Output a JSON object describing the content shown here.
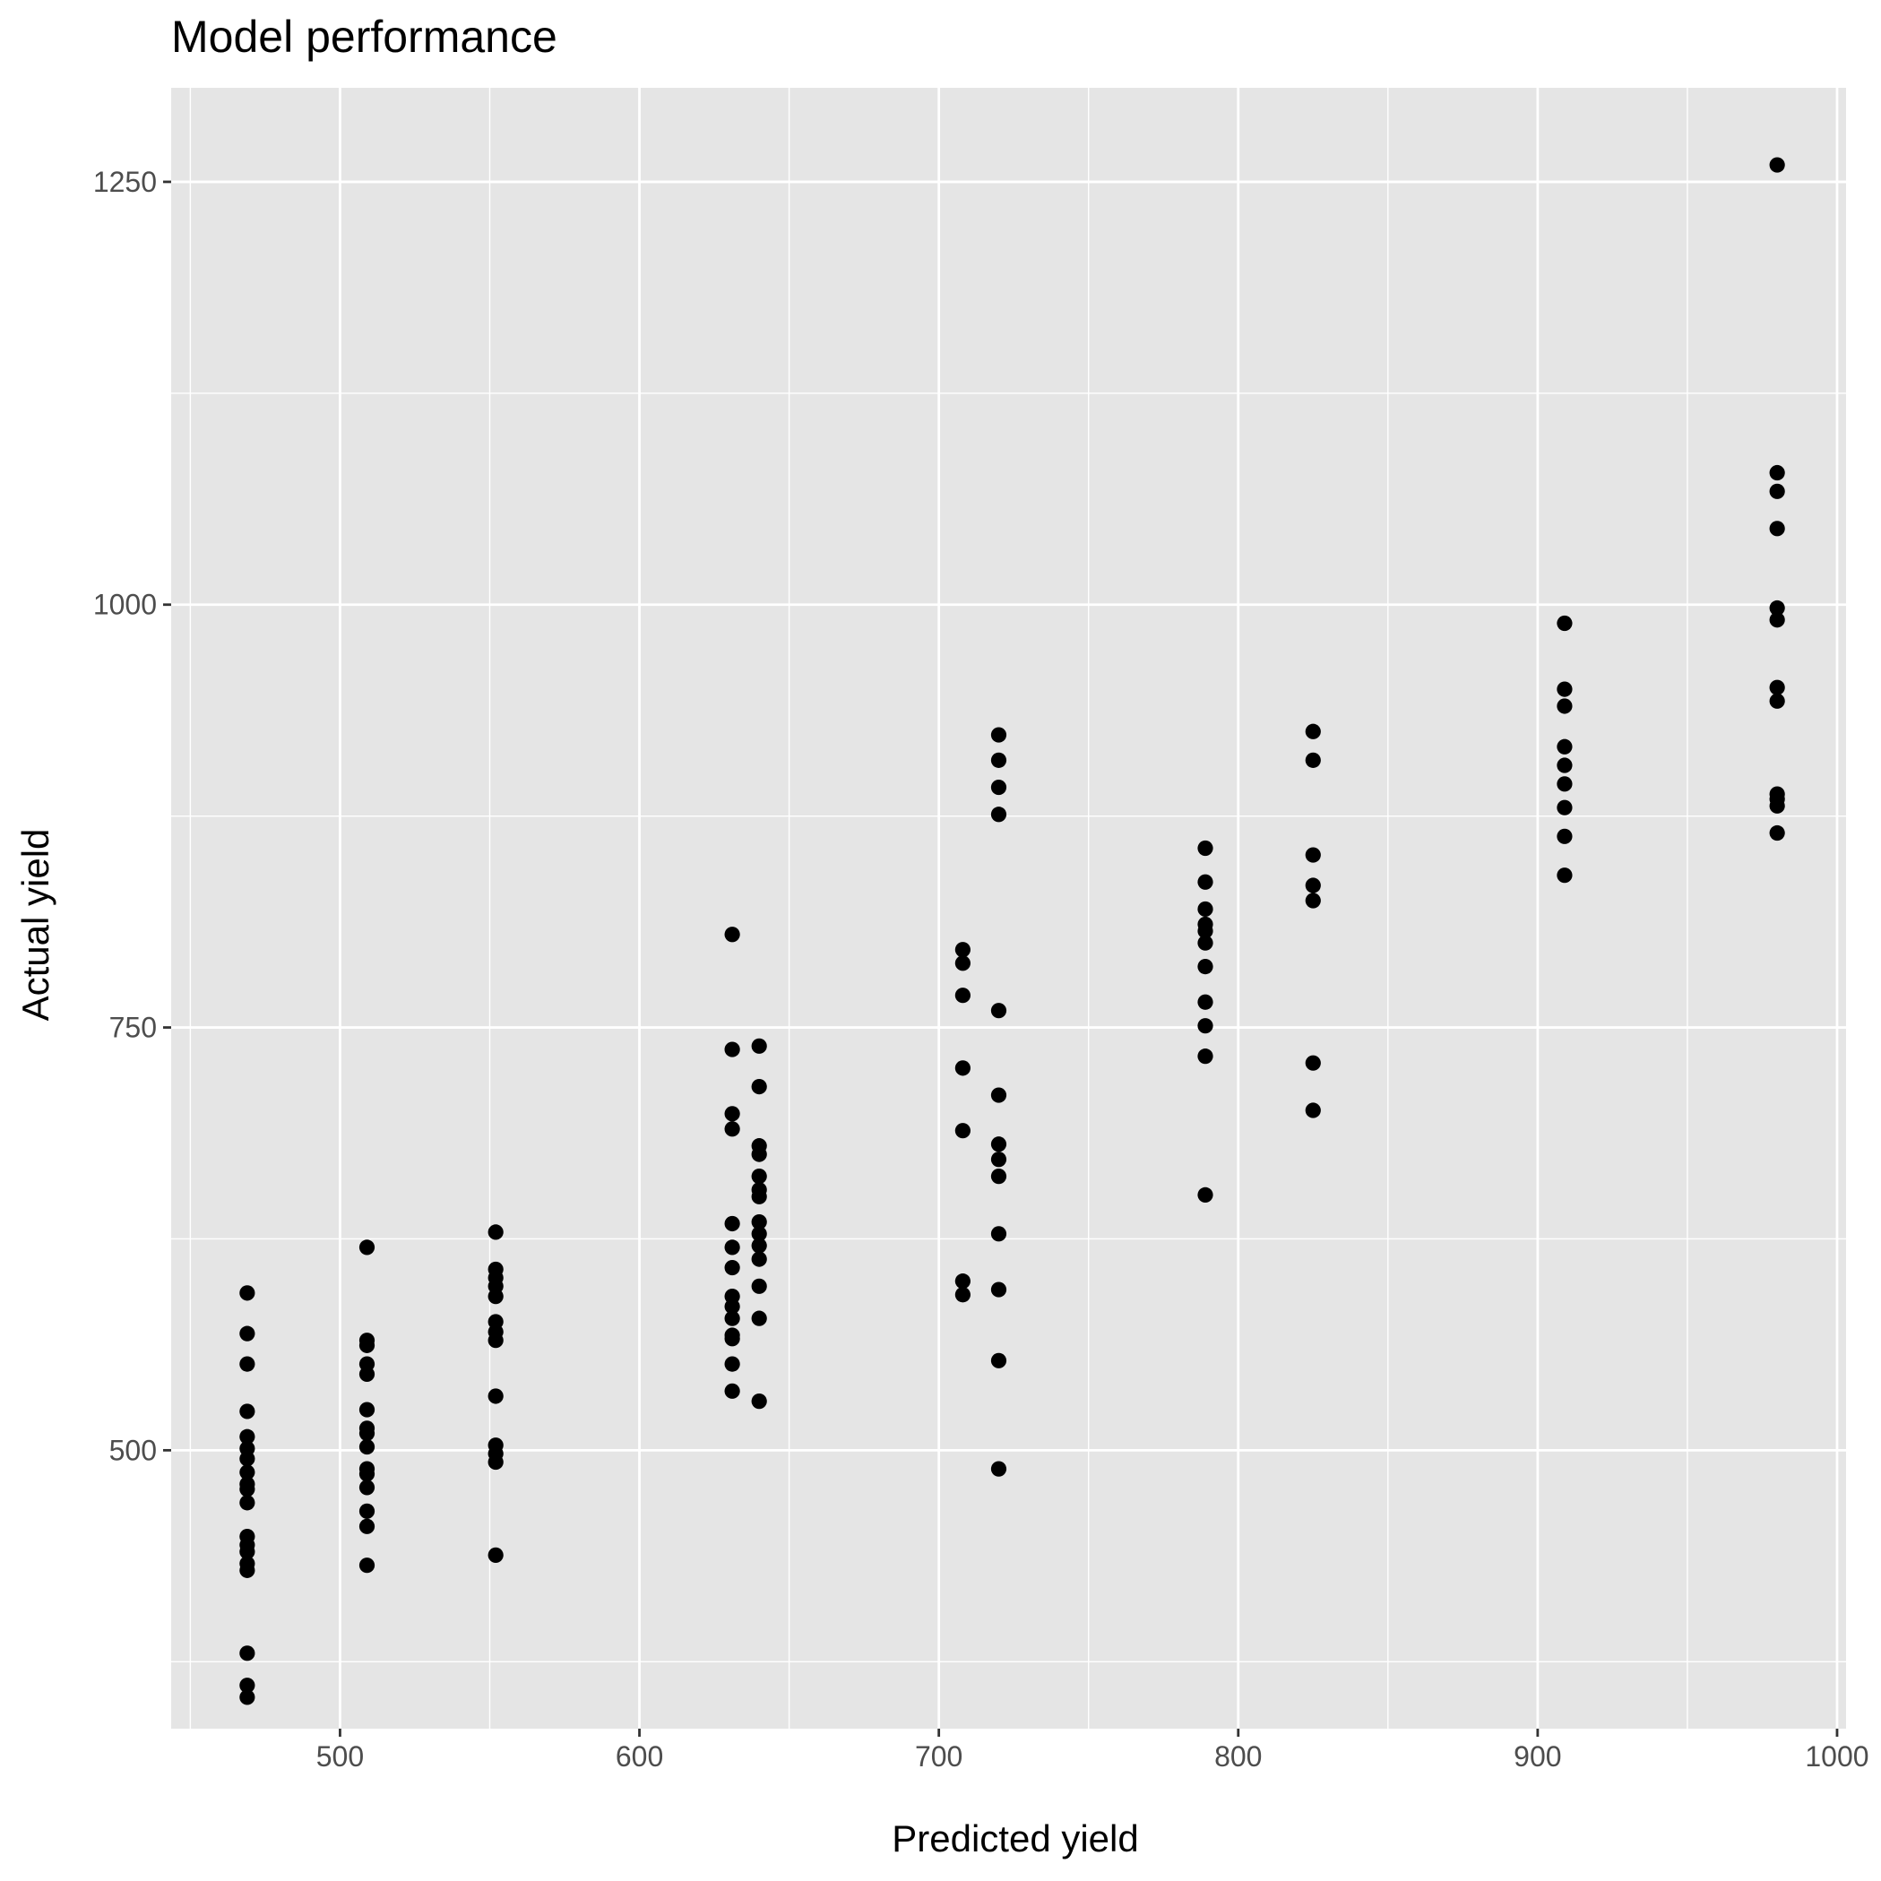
{
  "chart_data": {
    "type": "scatter",
    "title": "Model performance",
    "xlabel": "Predicted yield",
    "ylabel": "Actual yield",
    "xlim": [
      443.6,
      1003.0
    ],
    "ylim": [
      335.4,
      1305.6
    ],
    "x_ticks": [
      500,
      600,
      700,
      800,
      900,
      1000
    ],
    "y_ticks": [
      500,
      750,
      1000,
      1250
    ],
    "x_minor_ticks": [
      450,
      550,
      650,
      750,
      850,
      950
    ],
    "y_minor_ticks": [
      375,
      625,
      875,
      1125
    ],
    "background": "#e5e5e5",
    "grid": true,
    "grid_color": "#ffffff",
    "point_color": "#000000",
    "points": [
      {
        "x": 469,
        "y": 593
      },
      {
        "x": 469,
        "y": 569
      },
      {
        "x": 469,
        "y": 551
      },
      {
        "x": 469,
        "y": 523
      },
      {
        "x": 469,
        "y": 508
      },
      {
        "x": 469,
        "y": 501
      },
      {
        "x": 469,
        "y": 495
      },
      {
        "x": 469,
        "y": 487
      },
      {
        "x": 469,
        "y": 480
      },
      {
        "x": 469,
        "y": 477
      },
      {
        "x": 469,
        "y": 469
      },
      {
        "x": 469,
        "y": 449
      },
      {
        "x": 469,
        "y": 444
      },
      {
        "x": 469,
        "y": 440
      },
      {
        "x": 469,
        "y": 433
      },
      {
        "x": 469,
        "y": 429
      },
      {
        "x": 469,
        "y": 380
      },
      {
        "x": 469,
        "y": 361
      },
      {
        "x": 469,
        "y": 354
      },
      {
        "x": 509,
        "y": 620
      },
      {
        "x": 509,
        "y": 565
      },
      {
        "x": 509,
        "y": 562
      },
      {
        "x": 509,
        "y": 551
      },
      {
        "x": 509,
        "y": 545
      },
      {
        "x": 509,
        "y": 524
      },
      {
        "x": 509,
        "y": 513
      },
      {
        "x": 509,
        "y": 510
      },
      {
        "x": 509,
        "y": 502
      },
      {
        "x": 509,
        "y": 489
      },
      {
        "x": 509,
        "y": 486
      },
      {
        "x": 509,
        "y": 478
      },
      {
        "x": 509,
        "y": 464
      },
      {
        "x": 509,
        "y": 455
      },
      {
        "x": 509,
        "y": 432
      },
      {
        "x": 552,
        "y": 629
      },
      {
        "x": 552,
        "y": 607
      },
      {
        "x": 552,
        "y": 602
      },
      {
        "x": 552,
        "y": 597
      },
      {
        "x": 552,
        "y": 591
      },
      {
        "x": 552,
        "y": 576
      },
      {
        "x": 552,
        "y": 570
      },
      {
        "x": 552,
        "y": 565
      },
      {
        "x": 552,
        "y": 532
      },
      {
        "x": 552,
        "y": 503
      },
      {
        "x": 552,
        "y": 498
      },
      {
        "x": 552,
        "y": 493
      },
      {
        "x": 552,
        "y": 438
      },
      {
        "x": 631,
        "y": 805
      },
      {
        "x": 631,
        "y": 737
      },
      {
        "x": 631,
        "y": 699
      },
      {
        "x": 631,
        "y": 690
      },
      {
        "x": 631,
        "y": 634
      },
      {
        "x": 631,
        "y": 620
      },
      {
        "x": 631,
        "y": 608
      },
      {
        "x": 631,
        "y": 591
      },
      {
        "x": 631,
        "y": 585
      },
      {
        "x": 631,
        "y": 578
      },
      {
        "x": 631,
        "y": 568
      },
      {
        "x": 631,
        "y": 566
      },
      {
        "x": 631,
        "y": 551
      },
      {
        "x": 631,
        "y": 535
      },
      {
        "x": 640,
        "y": 739
      },
      {
        "x": 640,
        "y": 715
      },
      {
        "x": 640,
        "y": 680
      },
      {
        "x": 640,
        "y": 675
      },
      {
        "x": 640,
        "y": 662
      },
      {
        "x": 640,
        "y": 654
      },
      {
        "x": 640,
        "y": 650
      },
      {
        "x": 640,
        "y": 635
      },
      {
        "x": 640,
        "y": 628
      },
      {
        "x": 640,
        "y": 621
      },
      {
        "x": 640,
        "y": 613
      },
      {
        "x": 640,
        "y": 597
      },
      {
        "x": 640,
        "y": 578
      },
      {
        "x": 640,
        "y": 529
      },
      {
        "x": 708,
        "y": 796
      },
      {
        "x": 708,
        "y": 788
      },
      {
        "x": 708,
        "y": 769
      },
      {
        "x": 708,
        "y": 726
      },
      {
        "x": 708,
        "y": 689
      },
      {
        "x": 708,
        "y": 600
      },
      {
        "x": 708,
        "y": 592
      },
      {
        "x": 720,
        "y": 923
      },
      {
        "x": 720,
        "y": 908
      },
      {
        "x": 720,
        "y": 892
      },
      {
        "x": 720,
        "y": 876
      },
      {
        "x": 720,
        "y": 760
      },
      {
        "x": 720,
        "y": 710
      },
      {
        "x": 720,
        "y": 681
      },
      {
        "x": 720,
        "y": 672
      },
      {
        "x": 720,
        "y": 662
      },
      {
        "x": 720,
        "y": 628
      },
      {
        "x": 720,
        "y": 595
      },
      {
        "x": 720,
        "y": 553
      },
      {
        "x": 720,
        "y": 489
      },
      {
        "x": 789,
        "y": 856
      },
      {
        "x": 789,
        "y": 836
      },
      {
        "x": 789,
        "y": 820
      },
      {
        "x": 789,
        "y": 811
      },
      {
        "x": 789,
        "y": 807
      },
      {
        "x": 789,
        "y": 800
      },
      {
        "x": 789,
        "y": 786
      },
      {
        "x": 789,
        "y": 765
      },
      {
        "x": 789,
        "y": 751
      },
      {
        "x": 789,
        "y": 733
      },
      {
        "x": 789,
        "y": 651
      },
      {
        "x": 825,
        "y": 925
      },
      {
        "x": 825,
        "y": 908
      },
      {
        "x": 825,
        "y": 852
      },
      {
        "x": 825,
        "y": 834
      },
      {
        "x": 825,
        "y": 825
      },
      {
        "x": 825,
        "y": 729
      },
      {
        "x": 825,
        "y": 701
      },
      {
        "x": 909,
        "y": 989
      },
      {
        "x": 909,
        "y": 950
      },
      {
        "x": 909,
        "y": 940
      },
      {
        "x": 909,
        "y": 916
      },
      {
        "x": 909,
        "y": 905
      },
      {
        "x": 909,
        "y": 894
      },
      {
        "x": 909,
        "y": 880
      },
      {
        "x": 909,
        "y": 863
      },
      {
        "x": 909,
        "y": 840
      },
      {
        "x": 980,
        "y": 1260
      },
      {
        "x": 980,
        "y": 1078
      },
      {
        "x": 980,
        "y": 1067
      },
      {
        "x": 980,
        "y": 1045
      },
      {
        "x": 980,
        "y": 998
      },
      {
        "x": 980,
        "y": 991
      },
      {
        "x": 980,
        "y": 951
      },
      {
        "x": 980,
        "y": 943
      },
      {
        "x": 980,
        "y": 888
      },
      {
        "x": 980,
        "y": 885
      },
      {
        "x": 980,
        "y": 881
      },
      {
        "x": 980,
        "y": 865
      }
    ]
  }
}
